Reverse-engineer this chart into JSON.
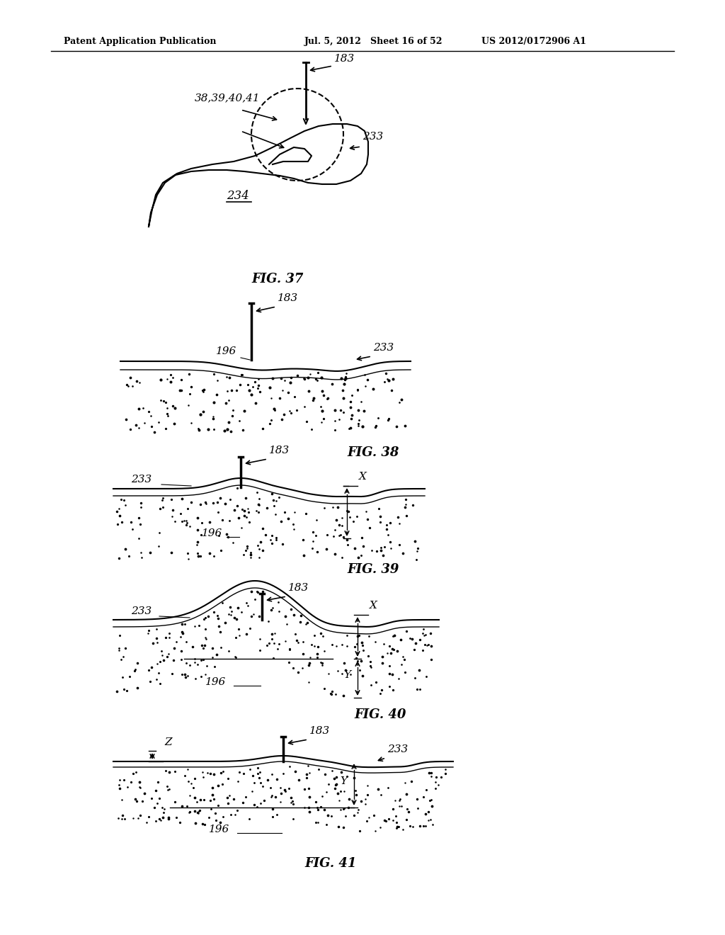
{
  "bg_color": "#ffffff",
  "header_left": "Patent Application Publication",
  "header_mid": "Jul. 5, 2012   Sheet 16 of 52",
  "header_right": "US 2012/0172906 A1",
  "fig37_caption": "FIG. 37",
  "fig38_caption": "FIG. 38",
  "fig39_caption": "FIG. 39",
  "fig40_caption": "FIG. 40",
  "fig41_caption": "FIG. 41",
  "label_183": "183",
  "label_233": "233",
  "label_234": "234",
  "label_196": "196",
  "label_38_39_40_41": "38,39,40,41",
  "label_X": "X",
  "label_Y": "Y",
  "label_Z": "Z",
  "line_color": "#000000",
  "dot_color": "#000000"
}
